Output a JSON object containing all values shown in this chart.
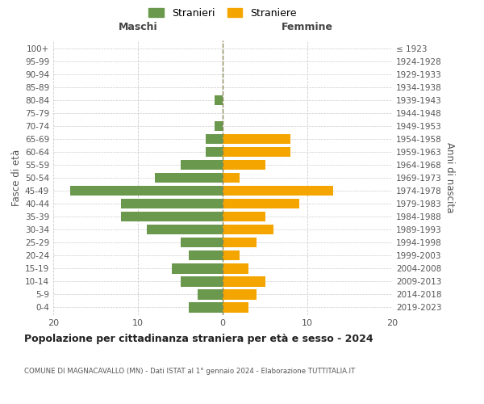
{
  "age_groups": [
    "0-4",
    "5-9",
    "10-14",
    "15-19",
    "20-24",
    "25-29",
    "30-34",
    "35-39",
    "40-44",
    "45-49",
    "50-54",
    "55-59",
    "60-64",
    "65-69",
    "70-74",
    "75-79",
    "80-84",
    "85-89",
    "90-94",
    "95-99",
    "100+"
  ],
  "birth_years": [
    "2019-2023",
    "2014-2018",
    "2009-2013",
    "2004-2008",
    "1999-2003",
    "1994-1998",
    "1989-1993",
    "1984-1988",
    "1979-1983",
    "1974-1978",
    "1969-1973",
    "1964-1968",
    "1959-1963",
    "1954-1958",
    "1949-1953",
    "1944-1948",
    "1939-1943",
    "1934-1938",
    "1929-1933",
    "1924-1928",
    "≤ 1923"
  ],
  "males": [
    4,
    3,
    5,
    6,
    4,
    5,
    9,
    12,
    12,
    18,
    8,
    5,
    2,
    2,
    1,
    0,
    1,
    0,
    0,
    0,
    0
  ],
  "females": [
    3,
    4,
    5,
    3,
    2,
    4,
    6,
    5,
    9,
    13,
    2,
    5,
    8,
    8,
    0,
    0,
    0,
    0,
    0,
    0,
    0
  ],
  "male_color": "#6a994e",
  "female_color": "#f4a500",
  "background_color": "#ffffff",
  "grid_color": "#cccccc",
  "center_line_color": "#888855",
  "title": "Popolazione per cittadinanza straniera per età e sesso - 2024",
  "subtitle": "COMUNE DI MAGNACAVALLO (MN) - Dati ISTAT al 1° gennaio 2024 - Elaborazione TUTTITALIA.IT",
  "xlabel_left": "Maschi",
  "xlabel_right": "Femmine",
  "ylabel_left": "Fasce di età",
  "ylabel_right": "Anni di nascita",
  "legend_male": "Stranieri",
  "legend_female": "Straniere",
  "xlim": 20
}
